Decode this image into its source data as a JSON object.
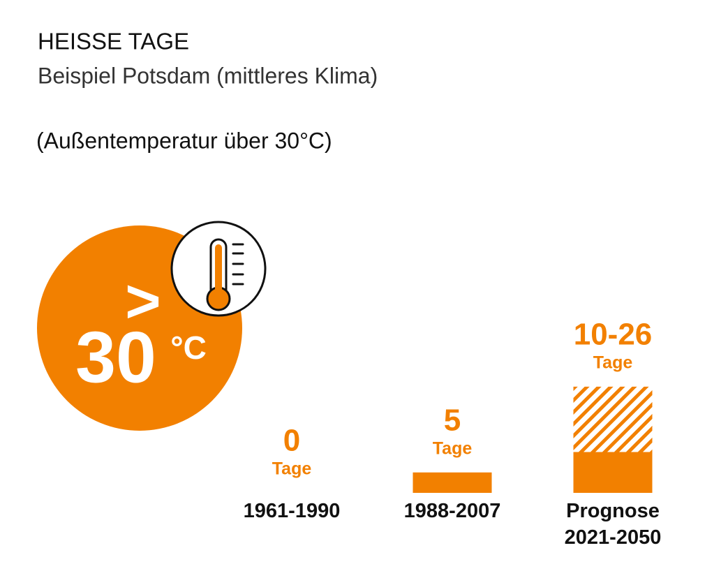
{
  "chart_data": {
    "type": "bar",
    "title": "HEISSE TAGE",
    "subtitle": "Beispiel Potsdam (mittleres Klima)",
    "note": "(Außentemperatur über 30°C)",
    "badge": {
      "symbol": ">",
      "number": "30",
      "unit": "°C"
    },
    "categories": [
      "1961-1990",
      "1988-2007",
      "Prognose 2021-2050"
    ],
    "values": [
      0,
      5,
      10
    ],
    "upper": [
      null,
      null,
      26
    ],
    "value_labels": [
      "0",
      "5",
      "10-26"
    ],
    "unit": "Tage",
    "color": "#f28000"
  }
}
